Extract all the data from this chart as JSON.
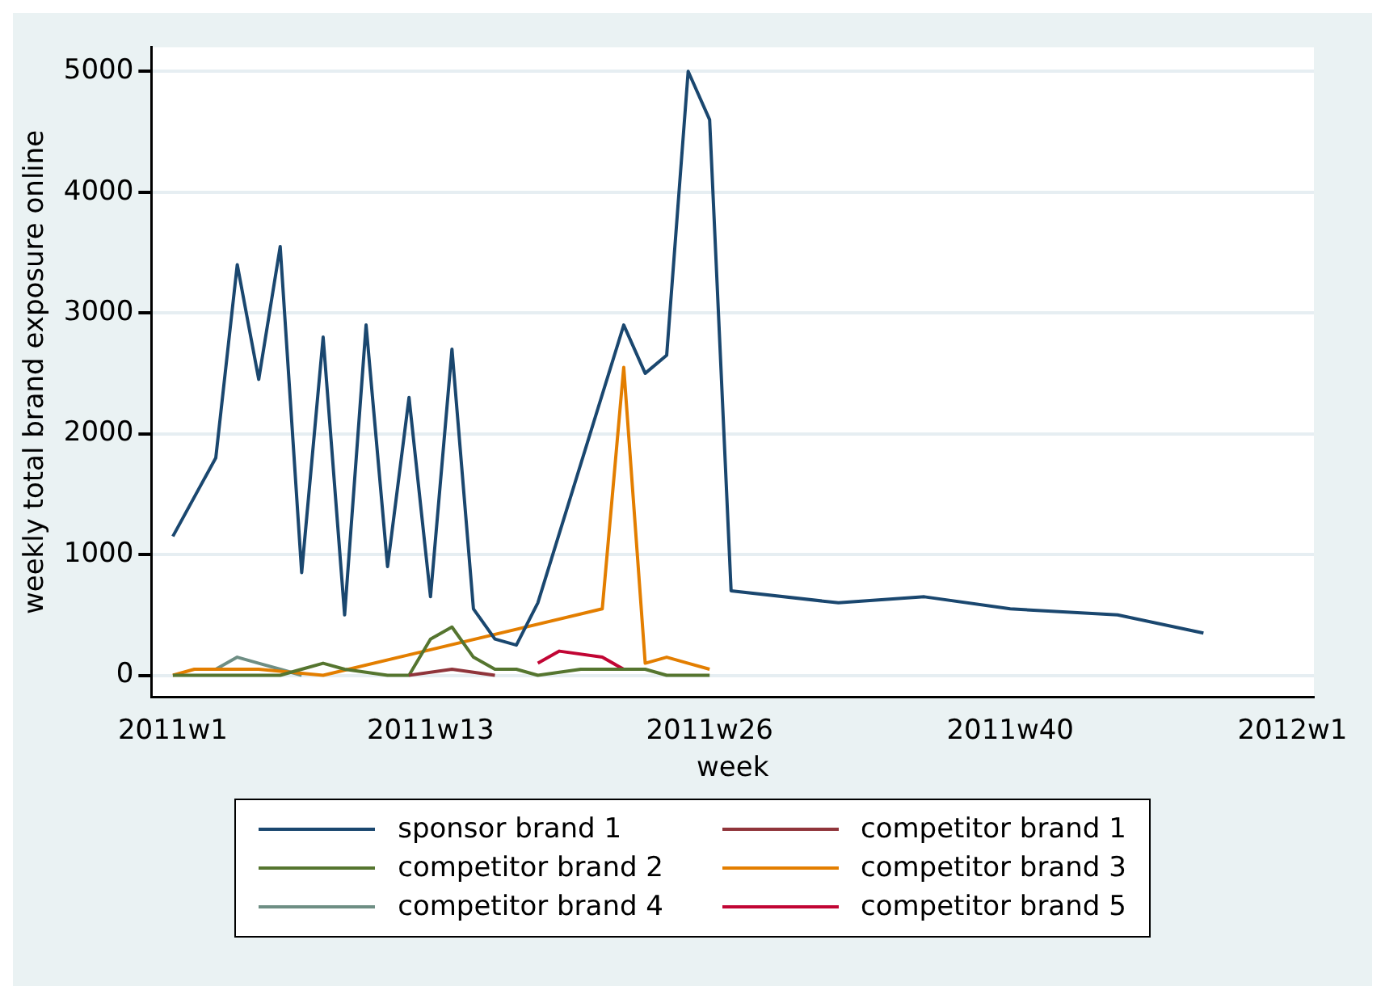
{
  "chart_data": {
    "type": "line",
    "xlabel": "week",
    "ylabel": "weekly total brand exposure online",
    "xlim": [
      "2010-12-25",
      "2012-01-08"
    ],
    "xticks": [
      {
        "value": "2011-01-01",
        "label": "2011w1"
      },
      {
        "value": "2011-03-26",
        "label": "2011w13"
      },
      {
        "value": "2011-06-25",
        "label": "2011w26"
      },
      {
        "value": "2011-10-01",
        "label": "2011w40"
      },
      {
        "value": "2012-01-01",
        "label": "2012w1"
      }
    ],
    "ylim": [
      -180,
      5200
    ],
    "yticks": [
      0,
      1000,
      2000,
      3000,
      4000,
      5000
    ],
    "grid": "y",
    "legend": "bottom",
    "marker": "none",
    "line_style": "solid",
    "series": [
      {
        "name": "sponsor brand 1",
        "color": "#1a476f",
        "x": [
          "2011-01-01",
          "2011-01-15",
          "2011-01-22",
          "2011-01-29",
          "2011-02-05",
          "2011-02-12",
          "2011-02-19",
          "2011-02-26",
          "2011-03-05",
          "2011-03-12",
          "2011-03-19",
          "2011-03-26",
          "2011-04-02",
          "2011-04-09",
          "2011-04-16",
          "2011-04-23",
          "2011-04-30",
          "2011-05-28",
          "2011-06-04",
          "2011-06-11",
          "2011-06-18",
          "2011-06-25",
          "2011-07-02",
          "2011-08-06",
          "2011-09-03",
          "2011-10-01",
          "2011-11-05",
          "2011-12-03"
        ],
        "values": [
          1150,
          1800,
          3400,
          2450,
          3550,
          850,
          2800,
          500,
          2900,
          900,
          2300,
          650,
          2700,
          550,
          300,
          250,
          600,
          2900,
          2500,
          2650,
          5000,
          4600,
          700,
          600,
          650,
          550,
          500,
          350
        ]
      },
      {
        "name": "competitor brand 1",
        "color": "#90353b",
        "x": [
          "2011-03-19",
          "2011-04-02",
          "2011-04-16"
        ],
        "values": [
          0,
          50,
          0
        ]
      },
      {
        "name": "competitor brand 2",
        "color": "#55752f",
        "x": [
          "2011-01-01",
          "2011-01-15",
          "2011-01-22",
          "2011-01-29",
          "2011-02-05",
          "2011-02-12",
          "2011-02-19",
          "2011-02-26",
          "2011-03-12",
          "2011-03-19",
          "2011-03-26",
          "2011-04-02",
          "2011-04-09",
          "2011-04-16",
          "2011-04-23",
          "2011-04-30",
          "2011-05-14",
          "2011-05-28",
          "2011-06-04",
          "2011-06-11",
          "2011-06-25"
        ],
        "values": [
          0,
          0,
          0,
          0,
          0,
          50,
          100,
          50,
          0,
          0,
          300,
          400,
          150,
          50,
          50,
          0,
          50,
          50,
          50,
          0,
          0
        ]
      },
      {
        "name": "competitor brand 3",
        "color": "#e37e00",
        "x": [
          "2011-01-01",
          "2011-01-08",
          "2011-01-29",
          "2011-02-19",
          "2011-05-21",
          "2011-05-28",
          "2011-06-04",
          "2011-06-11",
          "2011-06-18",
          "2011-06-25"
        ],
        "values": [
          0,
          50,
          50,
          0,
          550,
          2550,
          100,
          150,
          100,
          50
        ]
      },
      {
        "name": "competitor brand 4",
        "color": "#6e8e84",
        "x": [
          "2011-01-15",
          "2011-01-22",
          "2011-01-29",
          "2011-02-05",
          "2011-02-12"
        ],
        "values": [
          50,
          150,
          100,
          50,
          0
        ]
      },
      {
        "name": "competitor brand 5",
        "color": "#c10534",
        "x": [
          "2011-04-30",
          "2011-05-07",
          "2011-05-21",
          "2011-05-28"
        ],
        "values": [
          100,
          200,
          150,
          50
        ]
      }
    ]
  }
}
